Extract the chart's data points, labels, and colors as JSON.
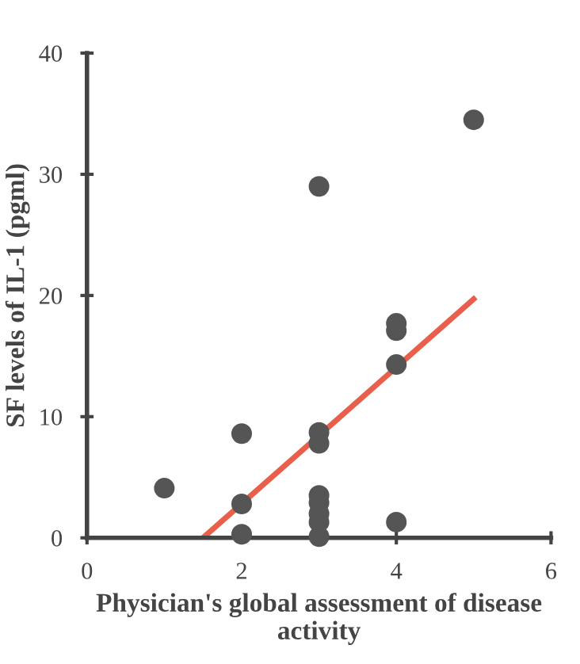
{
  "chart_data": {
    "type": "scatter",
    "xlabel": "Physician's global assessment of disease activity",
    "ylabel": "SF levels of IL-1 (pgml)",
    "xlim": [
      0,
      6
    ],
    "ylim": [
      0,
      40
    ],
    "xticks": [
      0,
      2,
      4,
      6
    ],
    "yticks": [
      0,
      10,
      20,
      30,
      40
    ],
    "grid": false,
    "series": [
      {
        "marker": "circle",
        "color": "#555555",
        "x": [
          1,
          2,
          2,
          2,
          3,
          3,
          3,
          3,
          3,
          3,
          3,
          3,
          4,
          4,
          4,
          4,
          5
        ],
        "values": [
          4.1,
          8.6,
          2.8,
          0.3,
          29.0,
          8.7,
          7.8,
          3.5,
          2.9,
          2.0,
          1.3,
          0.1,
          17.7,
          17.1,
          14.3,
          1.3,
          34.5
        ]
      },
      {
        "type": "line",
        "marker": "none",
        "color": "#e8604c",
        "line_style": "solid",
        "x": [
          1.5,
          5
        ],
        "values": [
          0,
          19.7
        ]
      }
    ]
  }
}
